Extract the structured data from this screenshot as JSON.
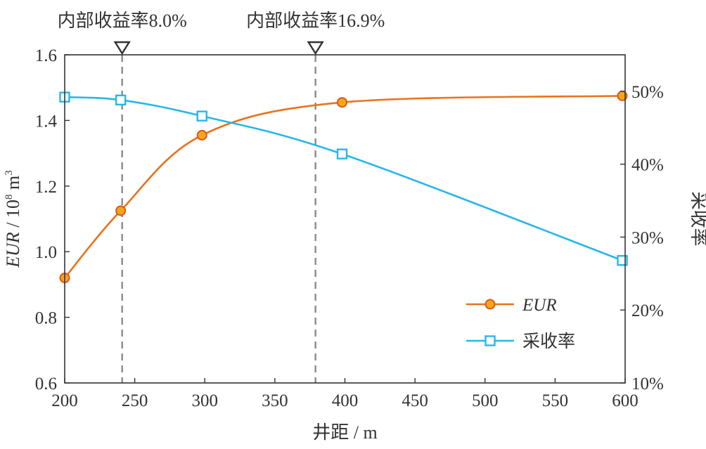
{
  "chart_data": {
    "type": "line",
    "x": [
      200,
      240,
      298,
      398,
      598
    ],
    "series": [
      {
        "name": "EUR",
        "axis": "left",
        "color": "#e8731c",
        "marker": "circle",
        "x": [
          200,
          240,
          298,
          398,
          598
        ],
        "values": [
          0.92,
          1.125,
          1.355,
          1.455,
          1.475
        ]
      },
      {
        "name": "采收率",
        "axis": "right",
        "color": "#29b6e8",
        "marker": "square",
        "x": [
          200,
          240,
          298,
          398,
          598
        ],
        "values": [
          49.2,
          48.8,
          46.6,
          41.4,
          26.8
        ]
      }
    ],
    "xlabel": "井距 / m",
    "ylabel_left": {
      "prefix": "EUR",
      "sep": " / ",
      "base": "10",
      "exp": "8",
      "unit": " m",
      "unit_exp": "3"
    },
    "ylabel_right": "采收率",
    "xlim": [
      200,
      600
    ],
    "ylim_left": [
      0.6,
      1.6
    ],
    "ylim_right": [
      10,
      55
    ],
    "x_ticks": [
      {
        "value": 200,
        "label": "200"
      },
      {
        "value": 250,
        "label": "250"
      },
      {
        "value": 300,
        "label": "300"
      },
      {
        "value": 350,
        "label": "350"
      },
      {
        "value": 400,
        "label": "400"
      },
      {
        "value": 450,
        "label": "450"
      },
      {
        "value": 500,
        "label": "500"
      },
      {
        "value": 550,
        "label": "550"
      },
      {
        "value": 600,
        "label": "600"
      }
    ],
    "y_left_ticks": [
      {
        "value": 0.6,
        "label": "0.6"
      },
      {
        "value": 0.8,
        "label": "0.8"
      },
      {
        "value": 1.0,
        "label": "1.0"
      },
      {
        "value": 1.2,
        "label": "1.2"
      },
      {
        "value": 1.4,
        "label": "1.4"
      },
      {
        "value": 1.6,
        "label": "1.6"
      }
    ],
    "y_right_ticks": [
      {
        "value": 10,
        "label": "10%"
      },
      {
        "value": 20,
        "label": "20%"
      },
      {
        "value": 30,
        "label": "30%"
      },
      {
        "value": 40,
        "label": "40%"
      },
      {
        "value": 50,
        "label": "50%"
      }
    ],
    "annotations": [
      {
        "x": 241,
        "label": "内部收益率8.0%"
      },
      {
        "x": 379,
        "label": "内部收益率16.9%"
      }
    ],
    "legend": {
      "position": "bottom-right",
      "entries": [
        {
          "label": "EUR",
          "italic": true
        },
        {
          "label": "采收率",
          "italic": false
        }
      ]
    },
    "grid": false
  }
}
